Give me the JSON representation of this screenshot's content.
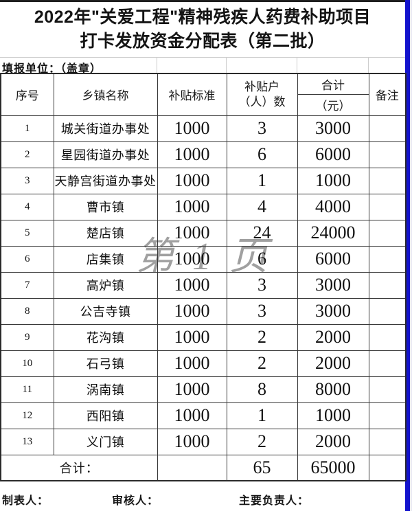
{
  "title": {
    "line1": "2022年\"关爱工程\"精神残疾人药费补助项目",
    "line2": "打卡发放资金分配表（第二批）"
  },
  "form": {
    "unit_label": "填报单位：（盖章）"
  },
  "watermark": "第 1 页",
  "table": {
    "headers": {
      "no": "序号",
      "town": "乡镇名称",
      "standard": "补贴标准",
      "count_line1": "补贴户",
      "count_line2": "（人）数",
      "total": "合计",
      "total_unit": "（元）",
      "remark": "备注"
    },
    "rows": [
      {
        "no": "1",
        "town": "城关街道办事处",
        "standard": "1000",
        "count": "3",
        "total": "3000",
        "remark": ""
      },
      {
        "no": "2",
        "town": "星园街道办事处",
        "standard": "1000",
        "count": "6",
        "total": "6000",
        "remark": ""
      },
      {
        "no": "3",
        "town": "天静宫街道办事处",
        "standard": "1000",
        "count": "1",
        "total": "1000",
        "remark": ""
      },
      {
        "no": "4",
        "town": "曹市镇",
        "standard": "1000",
        "count": "4",
        "total": "4000",
        "remark": ""
      },
      {
        "no": "5",
        "town": "楚店镇",
        "standard": "1000",
        "count": "24",
        "total": "24000",
        "remark": ""
      },
      {
        "no": "6",
        "town": "店集镇",
        "standard": "1000",
        "count": "6",
        "total": "6000",
        "remark": ""
      },
      {
        "no": "7",
        "town": "高炉镇",
        "standard": "1000",
        "count": "3",
        "total": "3000",
        "remark": ""
      },
      {
        "no": "8",
        "town": "公吉寺镇",
        "standard": "1000",
        "count": "3",
        "total": "3000",
        "remark": ""
      },
      {
        "no": "9",
        "town": "花沟镇",
        "standard": "1000",
        "count": "2",
        "total": "2000",
        "remark": ""
      },
      {
        "no": "10",
        "town": "石弓镇",
        "standard": "1000",
        "count": "2",
        "total": "2000",
        "remark": ""
      },
      {
        "no": "11",
        "town": "涡南镇",
        "standard": "1000",
        "count": "8",
        "total": "8000",
        "remark": ""
      },
      {
        "no": "12",
        "town": "西阳镇",
        "standard": "1000",
        "count": "1",
        "total": "1000",
        "remark": ""
      },
      {
        "no": "13",
        "town": "义门镇",
        "standard": "1000",
        "count": "2",
        "total": "2000",
        "remark": ""
      }
    ],
    "total_row": {
      "label": "合计：",
      "standard": "",
      "count": "65",
      "total": "65000",
      "remark": ""
    }
  },
  "footer": {
    "preparer": "制表人：",
    "reviewer": "审核人：",
    "responsible": "主要负责人："
  },
  "colors": {
    "accent_blue": "#1313cd",
    "grid_dark": "#383838",
    "grid_light": "#cccccc",
    "watermark_gray": "#a0a0a0"
  }
}
